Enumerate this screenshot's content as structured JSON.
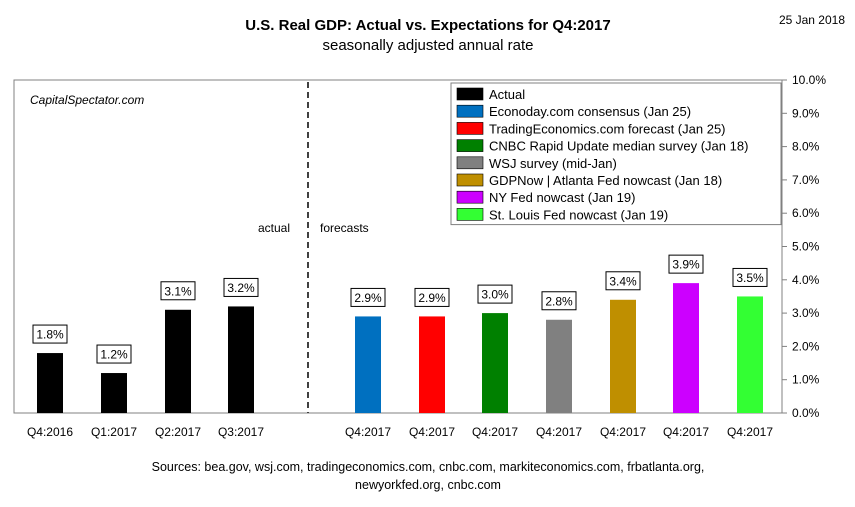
{
  "chart_data": {
    "type": "bar",
    "title": "U.S. Real GDP: Actual vs. Expectations for Q4:2017",
    "subtitle": "seasonally adjusted annual rate",
    "date": "25 Jan 2018",
    "watermark": "CapitalSpectator.com",
    "ylim": [
      0,
      10
    ],
    "yticks": [
      "0.0%",
      "1.0%",
      "2.0%",
      "3.0%",
      "4.0%",
      "5.0%",
      "6.0%",
      "7.0%",
      "8.0%",
      "9.0%",
      "10.0%"
    ],
    "divider_labels": {
      "left": "actual",
      "right": "forecasts"
    },
    "legend": [
      {
        "name": "Actual",
        "color": "#000000"
      },
      {
        "name": "Econoday.com consensus (Jan 25)",
        "color": "#0070C0"
      },
      {
        "name": "TradingEconomics.com forecast (Jan 25)",
        "color": "#FF0000"
      },
      {
        "name": "CNBC Rapid Update median survey (Jan 18)",
        "color": "#008000"
      },
      {
        "name": "WSJ survey (mid-Jan)",
        "color": "#808080"
      },
      {
        "name": "GDPNow | Atlanta Fed nowcast (Jan 18)",
        "color": "#BF8F00"
      },
      {
        "name": "NY Fed nowcast (Jan 19)",
        "color": "#CC00FF"
      },
      {
        "name": "St. Louis Fed nowcast (Jan 19)",
        "color": "#33FF33"
      }
    ],
    "bars": [
      {
        "category": "Q4:2016",
        "value": 1.8,
        "label": "1.8%",
        "color": "#000000"
      },
      {
        "category": "Q1:2017",
        "value": 1.2,
        "label": "1.2%",
        "color": "#000000"
      },
      {
        "category": "Q2:2017",
        "value": 3.1,
        "label": "3.1%",
        "color": "#000000"
      },
      {
        "category": "Q3:2017",
        "value": 3.2,
        "label": "3.2%",
        "color": "#000000"
      },
      {
        "category": "Q4:2017",
        "value": 2.9,
        "label": "2.9%",
        "color": "#0070C0"
      },
      {
        "category": "Q4:2017",
        "value": 2.9,
        "label": "2.9%",
        "color": "#FF0000"
      },
      {
        "category": "Q4:2017",
        "value": 3.0,
        "label": "3.0%",
        "color": "#008000"
      },
      {
        "category": "Q4:2017",
        "value": 2.8,
        "label": "2.8%",
        "color": "#808080"
      },
      {
        "category": "Q4:2017",
        "value": 3.4,
        "label": "3.4%",
        "color": "#BF8F00"
      },
      {
        "category": "Q4:2017",
        "value": 3.9,
        "label": "3.9%",
        "color": "#CC00FF"
      },
      {
        "category": "Q4:2017",
        "value": 3.5,
        "label": "3.5%",
        "color": "#33FF33"
      }
    ],
    "sources_line1": "Sources: bea.gov, wsj.com, tradingeconomics.com, cnbc.com, markiteconomics.com, frbatlanta.org,",
    "sources_line2": "newyorkfed.org, cnbc.com"
  }
}
